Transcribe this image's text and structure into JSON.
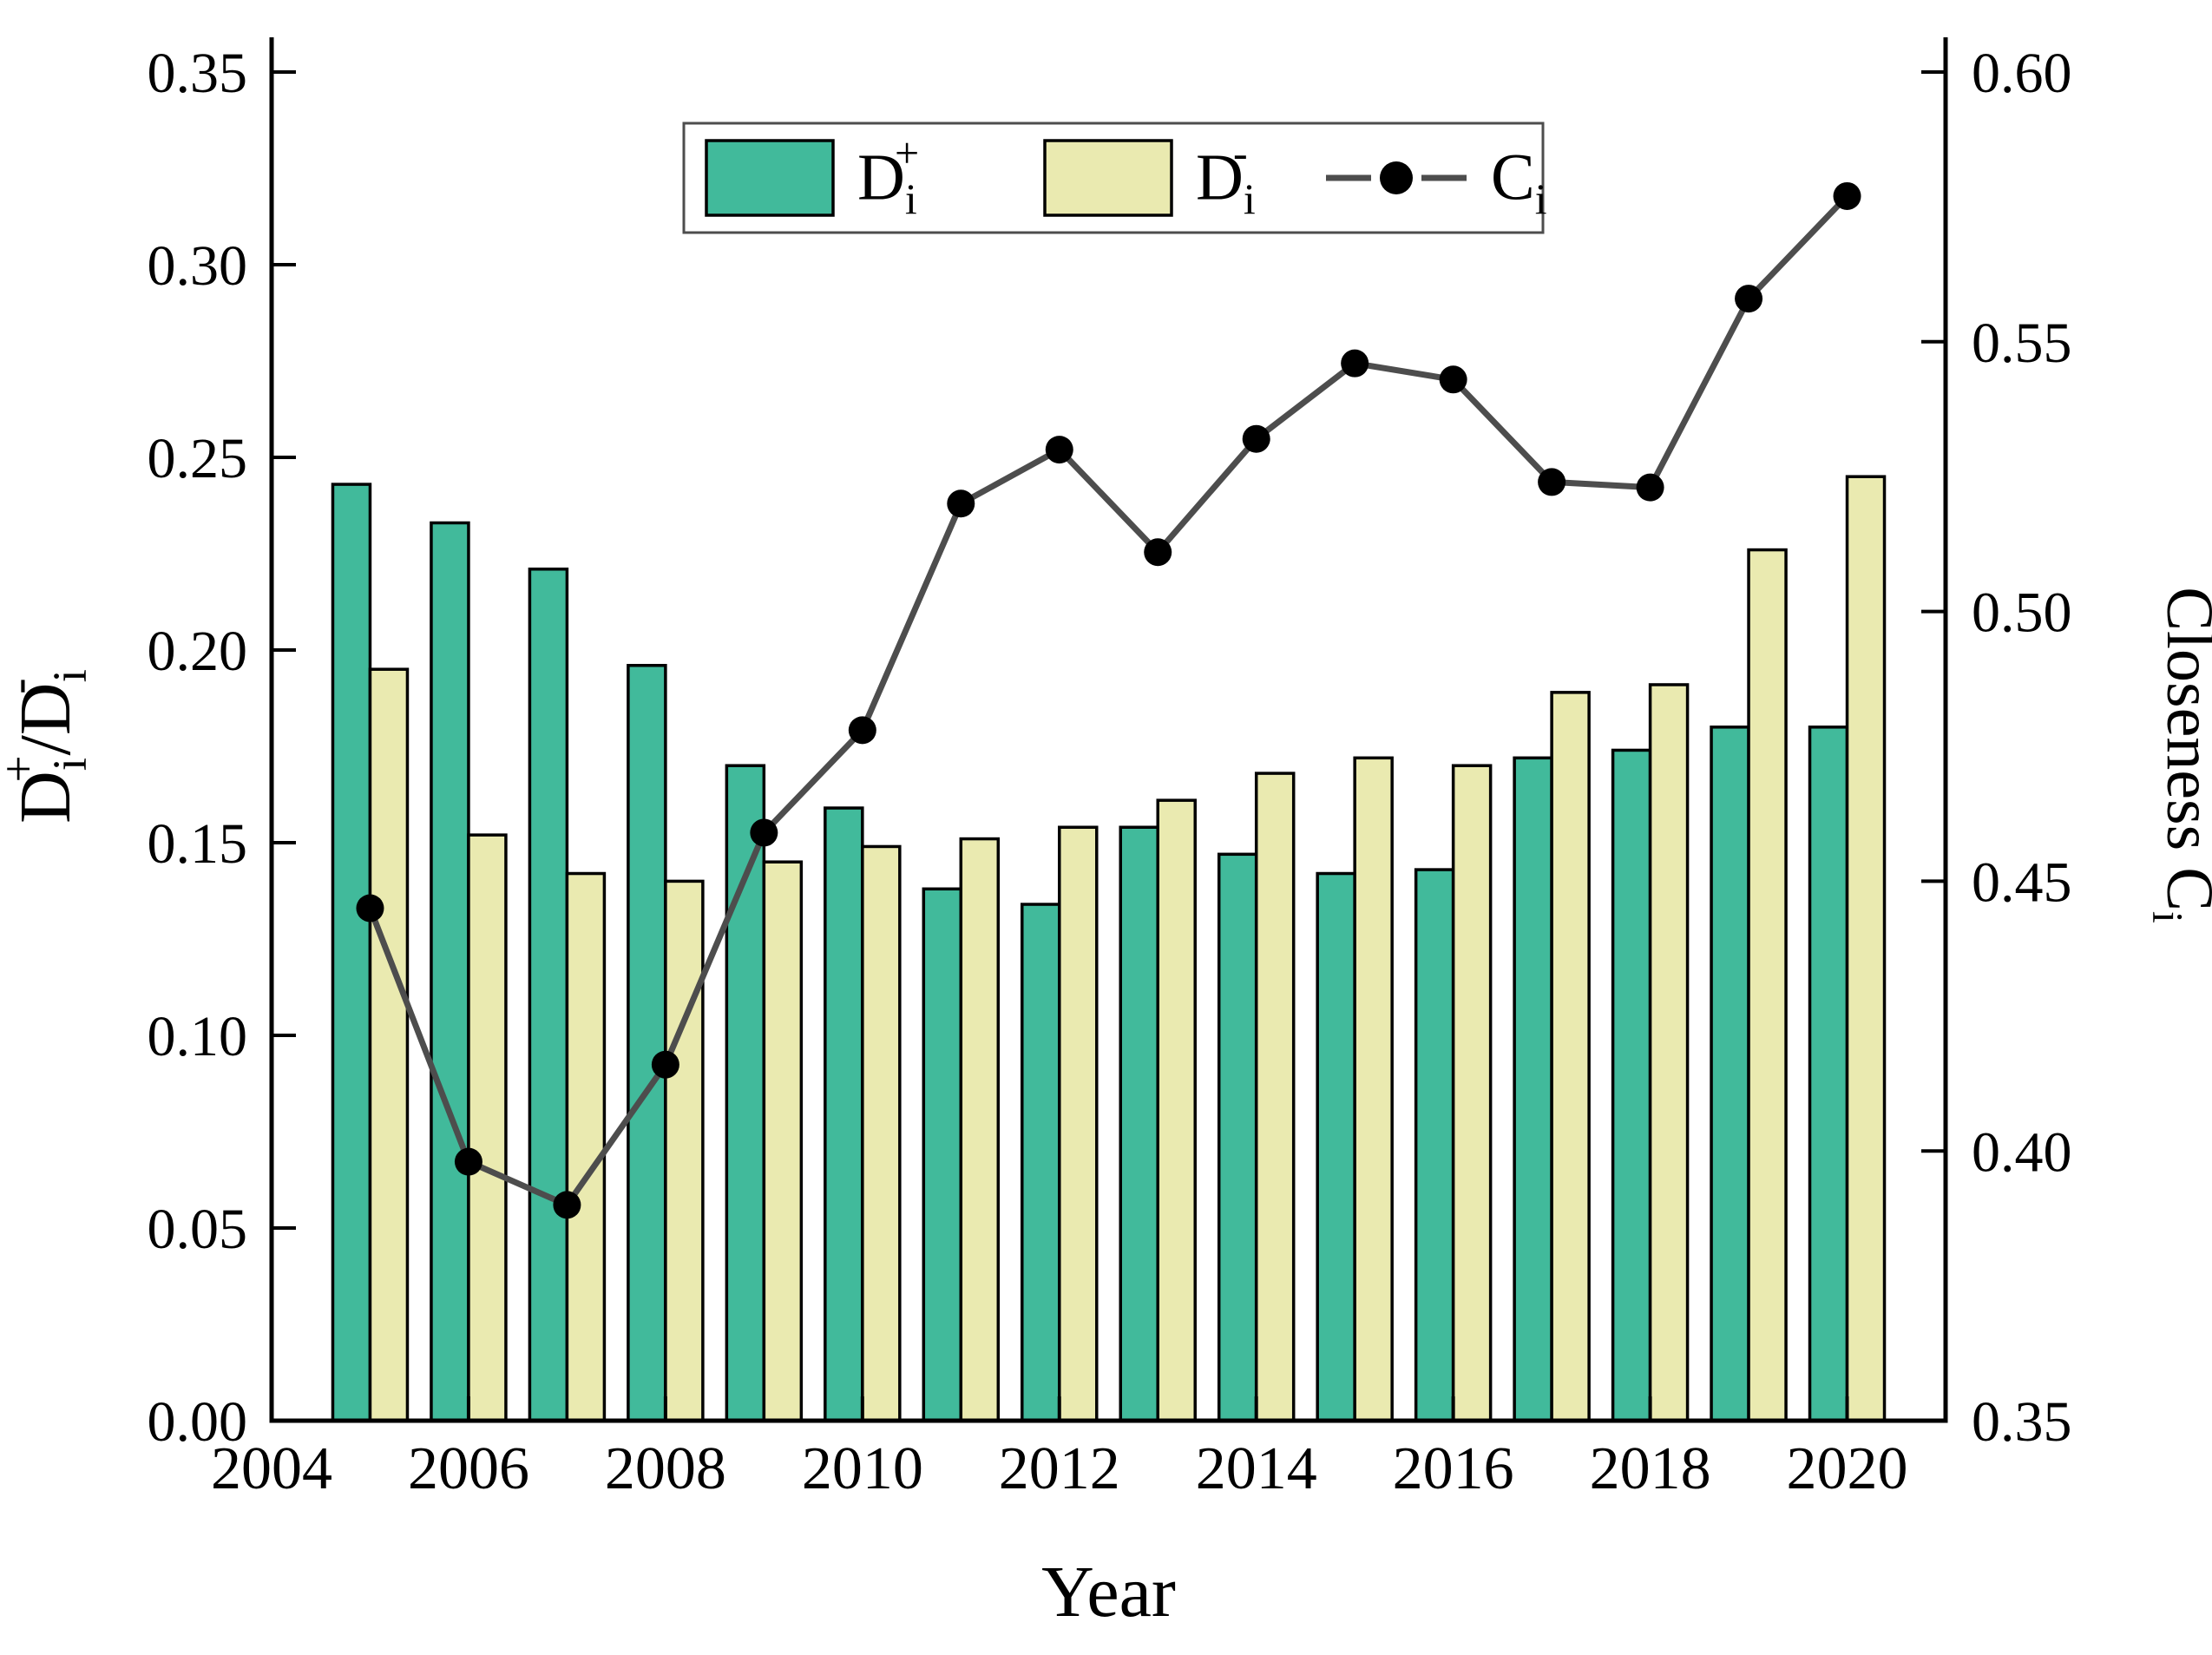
{
  "chart_data": {
    "type": "bar+line",
    "title": "",
    "categories": [
      2005,
      2006,
      2007,
      2008,
      2009,
      2010,
      2011,
      2012,
      2013,
      2014,
      2015,
      2016,
      2017,
      2018,
      2019,
      2020
    ],
    "series": [
      {
        "name": "D_i_plus",
        "type": "bar",
        "axis": "left",
        "color": "#41ba9b",
        "edge_color": "#000000",
        "values": [
          0.243,
          0.233,
          0.221,
          0.196,
          0.17,
          0.159,
          0.138,
          0.134,
          0.154,
          0.147,
          0.142,
          0.143,
          0.172,
          0.174,
          0.18,
          0.18
        ]
      },
      {
        "name": "D_i_minus",
        "type": "bar",
        "axis": "left",
        "color": "#eaeab0",
        "edge_color": "#000000",
        "values": [
          0.195,
          0.152,
          0.142,
          0.14,
          0.145,
          0.149,
          0.151,
          0.154,
          0.161,
          0.168,
          0.172,
          0.17,
          0.189,
          0.191,
          0.226,
          0.245
        ]
      },
      {
        "name": "C_i",
        "type": "line",
        "axis": "right",
        "color": "#4d4d4d",
        "marker_color": "#000000",
        "values": [
          0.445,
          0.398,
          0.39,
          0.416,
          0.459,
          0.478,
          0.52,
          0.53,
          0.511,
          0.532,
          0.546,
          0.543,
          0.524,
          0.523,
          0.558,
          0.577
        ]
      }
    ],
    "x_axis": {
      "label": "Year",
      "tick_labels": [
        "2004",
        "2006",
        "2008",
        "2010",
        "2012",
        "2014",
        "2016",
        "2018",
        "2020"
      ],
      "tick_values": [
        2004,
        2006,
        2008,
        2010,
        2012,
        2014,
        2016,
        2018,
        2020
      ],
      "range": [
        2004,
        2021
      ]
    },
    "left_axis": {
      "label_parts": [
        {
          "t": "D"
        },
        {
          "t": "i",
          "s": "sub"
        },
        {
          "t": "+",
          "s": "sup"
        },
        {
          "t": "/"
        },
        {
          "t": "D"
        },
        {
          "t": "i",
          "s": "sub"
        },
        {
          "t": "-",
          "s": "sup"
        }
      ],
      "tick_labels": [
        "0.00",
        "0.05",
        "0.10",
        "0.15",
        "0.20",
        "0.25",
        "0.30",
        "0.35"
      ],
      "tick_values": [
        0.0,
        0.05,
        0.1,
        0.15,
        0.2,
        0.25,
        0.3,
        0.35
      ],
      "range": [
        0.0,
        0.35
      ]
    },
    "right_axis": {
      "label_parts": [
        {
          "t": "Closeness C"
        },
        {
          "t": "i",
          "s": "sub"
        }
      ],
      "tick_labels": [
        "0.35",
        "0.40",
        "0.45",
        "0.50",
        "0.55",
        "0.60"
      ],
      "tick_values": [
        0.35,
        0.4,
        0.45,
        0.5,
        0.55,
        0.6
      ],
      "range": [
        0.35,
        0.6
      ]
    },
    "legend": {
      "position": "top-center",
      "items": [
        {
          "swatch": "bar",
          "color": "#41ba9b",
          "label_parts": [
            {
              "t": "D"
            },
            {
              "t": "i",
              "s": "sub"
            },
            {
              "t": "+",
              "s": "sup"
            }
          ]
        },
        {
          "swatch": "bar",
          "color": "#eaeab0",
          "label_parts": [
            {
              "t": "D"
            },
            {
              "t": "i",
              "s": "sub"
            },
            {
              "t": "-",
              "s": "sup"
            }
          ]
        },
        {
          "swatch": "line-dot",
          "color": "#4d4d4d",
          "marker_color": "#000000",
          "label_parts": [
            {
              "t": "C"
            },
            {
              "t": "i",
              "s": "sub"
            }
          ]
        }
      ]
    },
    "grid": "off"
  }
}
